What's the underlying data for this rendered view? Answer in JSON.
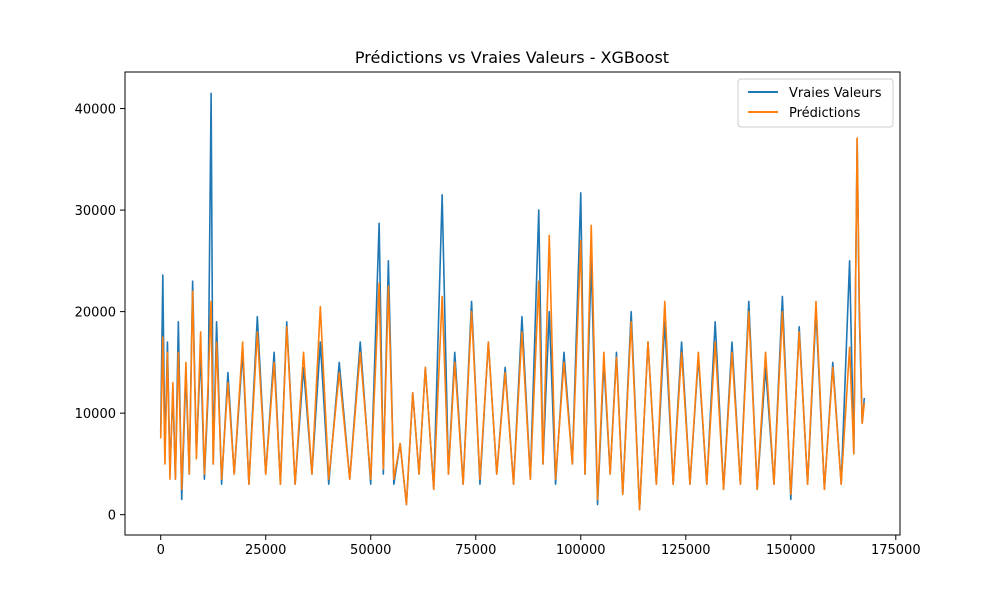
{
  "chart_data": {
    "type": "line",
    "title": "Prédictions vs Vraies Valeurs - XGBoost",
    "xlabel": "",
    "ylabel": "",
    "xlim": [
      -8500,
      176000
    ],
    "ylim": [
      -2000,
      43600
    ],
    "x_ticks": [
      0,
      25000,
      50000,
      75000,
      100000,
      125000,
      150000,
      175000
    ],
    "y_ticks": [
      0,
      10000,
      20000,
      30000,
      40000
    ],
    "x_tick_labels": [
      "0",
      "25000",
      "50000",
      "75000",
      "100000",
      "125000",
      "150000",
      "175000"
    ],
    "y_tick_labels": [
      "0",
      "10000",
      "20000",
      "30000",
      "40000"
    ],
    "grid": false,
    "legend_position": "top-right",
    "series": [
      {
        "name": "Vraies Valeurs",
        "color": "#1f77b4",
        "x": [
          0,
          500,
          1000,
          1600,
          2200,
          2900,
          3500,
          4200,
          5000,
          6000,
          6800,
          7600,
          8500,
          9500,
          10400,
          11300,
          12000,
          12500,
          13300,
          14500,
          16000,
          17500,
          19500,
          21000,
          23000,
          25000,
          27000,
          28500,
          30000,
          32000,
          34000,
          36000,
          38000,
          40000,
          42500,
          45000,
          47500,
          50000,
          52000,
          53000,
          54200,
          55500,
          57000,
          58500,
          60000,
          61500,
          63000,
          65000,
          67000,
          68500,
          70000,
          72000,
          74000,
          76000,
          78000,
          80000,
          82000,
          84000,
          86000,
          88000,
          90000,
          91000,
          92500,
          94000,
          96000,
          98000,
          100000,
          101000,
          102500,
          104000,
          105500,
          107000,
          108500,
          110000,
          112000,
          114000,
          116000,
          118000,
          120000,
          122000,
          124000,
          126000,
          128000,
          130000,
          132000,
          134000,
          136000,
          138000,
          140000,
          142000,
          144000,
          146000,
          148000,
          150000,
          152000,
          154000,
          156000,
          158000,
          160000,
          162000,
          164000,
          165000,
          165800,
          166300,
          167000,
          167500
        ],
        "values": [
          8000,
          23600,
          6000,
          17000,
          4500,
          12000,
          3500,
          19000,
          1500,
          14000,
          4000,
          23000,
          6000,
          16000,
          3500,
          12000,
          41500,
          5000,
          19000,
          3000,
          14000,
          4000,
          16000,
          3000,
          19500,
          4000,
          16000,
          3000,
          19000,
          3000,
          14500,
          4000,
          17000,
          3000,
          15000,
          3500,
          17000,
          3000,
          28700,
          4000,
          25000,
          3000,
          7000,
          1000,
          12000,
          4000,
          14500,
          2500,
          31500,
          4000,
          16000,
          3000,
          21000,
          3000,
          17000,
          4000,
          14500,
          3000,
          19500,
          3500,
          30000,
          5000,
          20000,
          3000,
          16000,
          5000,
          31700,
          4000,
          25000,
          1000,
          15000,
          4000,
          16000,
          2000,
          20000,
          500,
          17000,
          3000,
          19000,
          3000,
          17000,
          3000,
          15500,
          3000,
          19000,
          2500,
          17000,
          3000,
          21000,
          2500,
          14500,
          3000,
          21500,
          1500,
          18500,
          3000,
          20000,
          2500,
          15000,
          3000,
          25000,
          6000,
          37000,
          20000,
          9000,
          11500
        ]
      },
      {
        "name": "Prédictions",
        "color": "#ff7f0e",
        "x": [
          0,
          500,
          1000,
          1600,
          2200,
          2900,
          3500,
          4200,
          5000,
          6000,
          6800,
          7600,
          8500,
          9500,
          10400,
          11300,
          12000,
          12500,
          13300,
          14500,
          16000,
          17500,
          19500,
          21000,
          23000,
          25000,
          27000,
          28500,
          30000,
          32000,
          34000,
          36000,
          38000,
          40000,
          42500,
          45000,
          47500,
          50000,
          52000,
          53000,
          54200,
          55500,
          57000,
          58500,
          60000,
          61500,
          63000,
          65000,
          67000,
          68500,
          70000,
          72000,
          74000,
          76000,
          78000,
          80000,
          82000,
          84000,
          86000,
          88000,
          90000,
          91000,
          92500,
          94000,
          96000,
          98000,
          100000,
          101000,
          102500,
          104000,
          105500,
          107000,
          108500,
          110000,
          112000,
          114000,
          116000,
          118000,
          120000,
          122000,
          124000,
          126000,
          128000,
          130000,
          132000,
          134000,
          136000,
          138000,
          140000,
          142000,
          144000,
          146000,
          148000,
          150000,
          152000,
          154000,
          156000,
          158000,
          160000,
          162000,
          164000,
          165000,
          165800,
          166300,
          167000,
          167500
        ],
        "values": [
          7500,
          17500,
          5000,
          16000,
          3500,
          13000,
          3500,
          16000,
          2500,
          15000,
          4000,
          22000,
          5500,
          18000,
          4000,
          13000,
          21000,
          5000,
          17000,
          3500,
          13000,
          4000,
          17000,
          3000,
          18000,
          4000,
          15000,
          3000,
          18500,
          3000,
          16000,
          4000,
          20500,
          3500,
          14000,
          3500,
          16000,
          3500,
          22800,
          4500,
          22500,
          3500,
          7000,
          1000,
          12000,
          4000,
          14500,
          2500,
          21500,
          4000,
          15000,
          3000,
          20000,
          3500,
          17000,
          4000,
          14000,
          3000,
          18000,
          3500,
          23000,
          5000,
          27500,
          3500,
          15000,
          5000,
          27000,
          4000,
          28500,
          1500,
          16000,
          4000,
          15500,
          2000,
          19000,
          500,
          17000,
          3000,
          21000,
          3000,
          16000,
          3000,
          16000,
          3000,
          17000,
          2500,
          16000,
          3000,
          20000,
          2500,
          16000,
          3000,
          20000,
          2000,
          18000,
          3000,
          21000,
          2500,
          14500,
          3000,
          16500,
          6000,
          37100,
          21000,
          9000,
          11000
        ]
      }
    ]
  }
}
